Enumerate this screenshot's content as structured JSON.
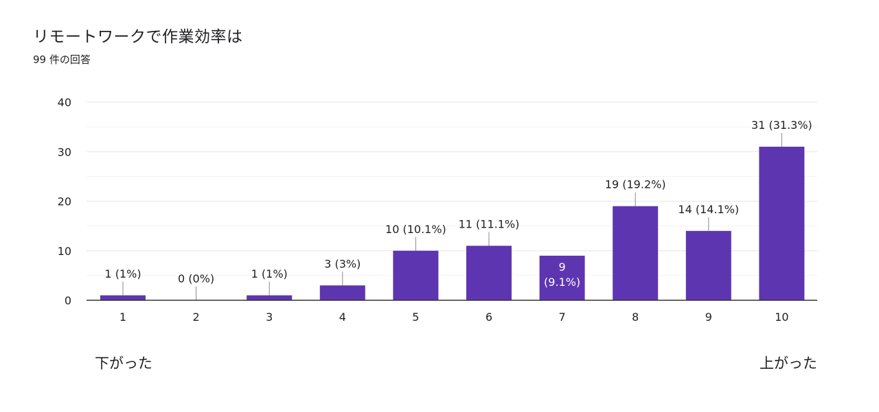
{
  "title": "リモートワークで作業効率は",
  "subtitle": "99 件の回答",
  "scale": {
    "low_label": "下がった",
    "high_label": "上がった"
  },
  "colors": {
    "bar": "#5e35b1",
    "grid": "#e8e8e8",
    "axis": "#333333",
    "text": "#202124"
  },
  "chart_data": {
    "type": "bar",
    "categories": [
      "1",
      "2",
      "3",
      "4",
      "5",
      "6",
      "7",
      "8",
      "9",
      "10"
    ],
    "values": [
      1,
      0,
      1,
      3,
      10,
      11,
      9,
      19,
      14,
      31
    ],
    "data_labels": [
      "1 (1%)",
      "0 (0%)",
      "1 (1%)",
      "3 (3%)",
      "10 (10.1%)",
      "11 (11.1%)",
      "9 (9.1%)",
      "19 (19.2%)",
      "14 (14.1%)",
      "31 (31.3%)"
    ],
    "inside_label_lines": {
      "6": [
        "9",
        "(9.1%)"
      ]
    },
    "yticks": [
      "0",
      "10",
      "20",
      "30",
      "40"
    ],
    "ylim": [
      0,
      40
    ],
    "grid": true,
    "legend": "none"
  }
}
